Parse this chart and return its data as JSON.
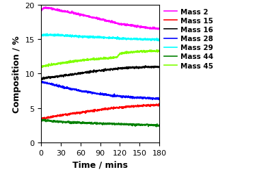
{
  "title": "",
  "xlabel": "Time / mins",
  "ylabel": "Composition / %",
  "xlim": [
    0,
    180
  ],
  "ylim": [
    0,
    20
  ],
  "xticks": [
    0,
    30,
    60,
    90,
    120,
    150,
    180
  ],
  "yticks": [
    0,
    5,
    10,
    15,
    20
  ],
  "series": {
    "Mass 2": {
      "color": "#ff00ff",
      "t": [
        0,
        3,
        8,
        15,
        30,
        45,
        60,
        75,
        90,
        105,
        120,
        135,
        150,
        165,
        180
      ],
      "y": [
        19.0,
        19.5,
        19.55,
        19.45,
        19.1,
        18.85,
        18.55,
        18.2,
        17.9,
        17.55,
        17.2,
        17.0,
        16.8,
        16.6,
        16.5
      ]
    },
    "Mass 15": {
      "color": "#ff0000",
      "t": [
        0,
        5,
        10,
        20,
        30,
        45,
        60,
        75,
        90,
        105,
        120,
        135,
        150,
        165,
        180
      ],
      "y": [
        3.5,
        3.5,
        3.6,
        3.75,
        3.95,
        4.15,
        4.35,
        4.55,
        4.75,
        4.95,
        5.1,
        5.2,
        5.3,
        5.4,
        5.5
      ]
    },
    "Mass 16": {
      "color": "#000000",
      "t": [
        0,
        5,
        10,
        20,
        30,
        45,
        60,
        75,
        90,
        105,
        120,
        135,
        150,
        165,
        180
      ],
      "y": [
        9.2,
        9.3,
        9.4,
        9.5,
        9.65,
        9.85,
        10.05,
        10.25,
        10.45,
        10.6,
        10.75,
        10.85,
        10.9,
        10.95,
        11.0
      ]
    },
    "Mass 28": {
      "color": "#0000ff",
      "t": [
        0,
        5,
        10,
        20,
        30,
        45,
        60,
        75,
        90,
        105,
        120,
        135,
        150,
        165,
        180
      ],
      "y": [
        8.8,
        8.7,
        8.6,
        8.35,
        8.1,
        7.8,
        7.5,
        7.25,
        7.05,
        6.85,
        6.7,
        6.6,
        6.5,
        6.45,
        6.35
      ]
    },
    "Mass 29": {
      "color": "#00ffff",
      "t": [
        0,
        5,
        10,
        20,
        30,
        45,
        60,
        75,
        90,
        105,
        120,
        135,
        150,
        165,
        180
      ],
      "y": [
        15.5,
        15.6,
        15.6,
        15.58,
        15.55,
        15.45,
        15.38,
        15.3,
        15.25,
        15.18,
        15.1,
        15.05,
        15.0,
        14.95,
        14.9
      ]
    },
    "Mass 44": {
      "color": "#008000",
      "t": [
        0,
        5,
        10,
        20,
        30,
        45,
        60,
        75,
        90,
        105,
        120,
        135,
        150,
        165,
        180
      ],
      "y": [
        3.3,
        3.25,
        3.18,
        3.08,
        3.0,
        2.95,
        2.88,
        2.83,
        2.78,
        2.73,
        2.68,
        2.63,
        2.58,
        2.55,
        2.5
      ]
    },
    "Mass 45": {
      "color": "#7fff00",
      "t": [
        0,
        5,
        10,
        20,
        30,
        45,
        60,
        75,
        90,
        105,
        115,
        120,
        125,
        135,
        150,
        165,
        180
      ],
      "y": [
        11.0,
        11.1,
        11.2,
        11.35,
        11.5,
        11.7,
        11.9,
        12.05,
        12.15,
        12.25,
        12.35,
        12.9,
        13.0,
        13.1,
        13.2,
        13.25,
        13.3
      ]
    }
  },
  "legend_order": [
    "Mass 2",
    "Mass 15",
    "Mass 16",
    "Mass 28",
    "Mass 29",
    "Mass 44",
    "Mass 45"
  ],
  "legend_fontsize": 7.5,
  "axis_fontsize": 9,
  "tick_fontsize": 8,
  "noise_amp": 0.07,
  "linewidth": 1.2
}
